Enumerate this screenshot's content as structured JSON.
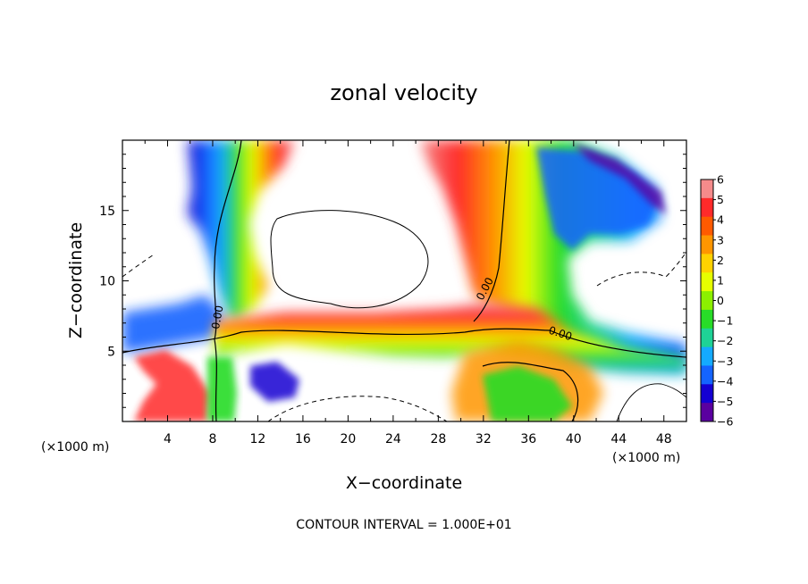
{
  "chart_data": {
    "type": "heatmap",
    "title": "zonal velocity",
    "xlabel": "X−coordinate",
    "ylabel": "Z−coordinate",
    "x_units": "(×1000 m)",
    "z_units": "(×1000 m)",
    "xlim": [
      0,
      50
    ],
    "ylim": [
      0,
      20
    ],
    "x_ticks": [
      "4",
      "8",
      "12",
      "16",
      "20",
      "24",
      "28",
      "32",
      "36",
      "40",
      "44",
      "48"
    ],
    "x_tick_values": [
      4,
      8,
      12,
      16,
      20,
      24,
      28,
      32,
      36,
      40,
      44,
      48
    ],
    "y_ticks": [
      "5",
      "10",
      "15"
    ],
    "y_tick_values": [
      5,
      10,
      15
    ],
    "colorbar": {
      "min": -6,
      "max": 6,
      "labels": [
        "6",
        "5",
        "4",
        "3",
        "2",
        "1",
        "0",
        "−1",
        "−2",
        "−3",
        "−4",
        "−5",
        "−6"
      ],
      "values": [
        6,
        5,
        4,
        3,
        2,
        1,
        0,
        -1,
        -2,
        -3,
        -4,
        -5,
        -6
      ],
      "colors": [
        "#f58b8b",
        "#ff2a2a",
        "#ff5a00",
        "#ff9600",
        "#ffd200",
        "#e6ff00",
        "#8cf000",
        "#28dc28",
        "#1ed296",
        "#14aaff",
        "#1464ff",
        "#1400d2",
        "#5a00a0"
      ]
    },
    "contour_labels": [
      {
        "text": "0.00",
        "x": 8.5,
        "z": 7.4,
        "angle": -80
      },
      {
        "text": "0.00",
        "x": 32.2,
        "z": 9.4,
        "angle": -62
      },
      {
        "text": "0.00",
        "x": 38.8,
        "z": 6.2,
        "angle": 18
      }
    ],
    "footer": "CONTOUR INTERVAL =  1.000E+01"
  },
  "colors": {
    "background": "#ffffff",
    "frame": "#000000"
  }
}
